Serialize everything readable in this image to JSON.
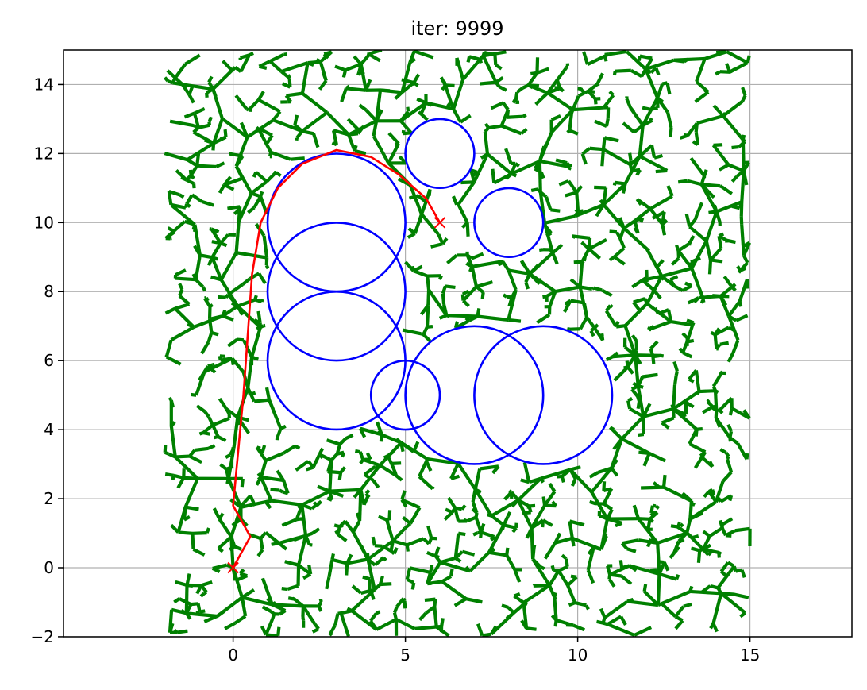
{
  "chart_data": {
    "type": "scatter",
    "title": "iter: 9999",
    "xlabel": "",
    "ylabel": "",
    "xlim": [
      -5,
      18
    ],
    "ylim": [
      -2,
      15
    ],
    "xticks": [
      0,
      5,
      10,
      15
    ],
    "yticks": [
      -2,
      0,
      2,
      4,
      6,
      8,
      10,
      12,
      14
    ],
    "xtick_labels": [
      "0",
      "5",
      "10",
      "15"
    ],
    "ytick_labels": [
      "−2",
      "0",
      "2",
      "4",
      "6",
      "8",
      "10",
      "12",
      "14"
    ],
    "grid": true,
    "sample_region": {
      "xmin": -2,
      "xmax": 15,
      "ymin": -2,
      "ymax": 15
    },
    "start": [
      0,
      0
    ],
    "goal": [
      6,
      10
    ],
    "obstacles": [
      {
        "cx": 3,
        "cy": 10,
        "r": 2
      },
      {
        "cx": 3,
        "cy": 8,
        "r": 2
      },
      {
        "cx": 3,
        "cy": 6,
        "r": 2
      },
      {
        "cx": 6,
        "cy": 12,
        "r": 1
      },
      {
        "cx": 8,
        "cy": 10,
        "r": 1
      },
      {
        "cx": 5,
        "cy": 5,
        "r": 1
      },
      {
        "cx": 7,
        "cy": 5,
        "r": 2
      },
      {
        "cx": 9,
        "cy": 5,
        "r": 2
      }
    ],
    "path": [
      [
        0,
        0
      ],
      [
        0.5,
        0.9
      ],
      [
        0,
        1.8
      ],
      [
        0.3,
        5
      ],
      [
        0.55,
        8.5
      ],
      [
        0.8,
        10
      ],
      [
        1.3,
        11
      ],
      [
        2,
        11.7
      ],
      [
        3,
        12.1
      ],
      [
        4,
        11.9
      ],
      [
        4.8,
        11.4
      ],
      [
        5.6,
        10.7
      ],
      [
        6,
        10
      ]
    ],
    "colors": {
      "tree": "#008000",
      "obstacle": "#0000ff",
      "path": "#ff0000",
      "grid": "#b0b0b0"
    }
  }
}
